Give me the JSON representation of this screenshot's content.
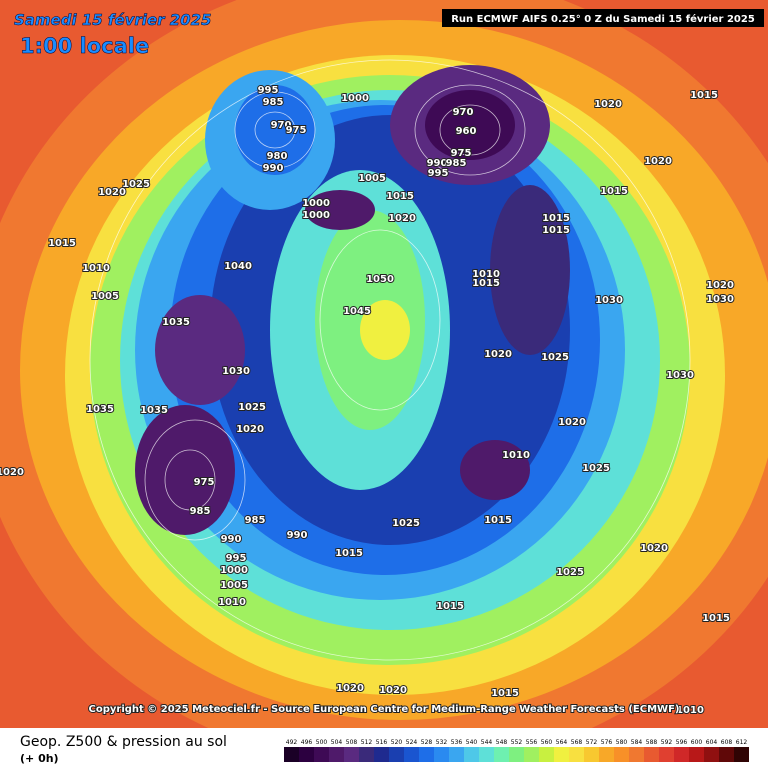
{
  "header": {
    "date": "Samedi 15 février 2025",
    "local_time": "1:00 locale",
    "run": "Run ECMWF AIFS 0.25° 0 Z du Samedi 15 février 2025"
  },
  "copyright": "Copyright © 2025 Meteociel.fr - Source European Centre for Medium-Range Weather Forecasts (ECMWF)",
  "footer": {
    "title": "Geop. Z500 & pression au sol",
    "lead": "(+ 0h)"
  },
  "isobars": [
    995,
    985,
    970,
    975,
    980,
    990,
    1000,
    970,
    960,
    975,
    990,
    985,
    995,
    1005,
    1015,
    1020,
    1000,
    1000,
    1050,
    1045,
    1040,
    1035,
    1030,
    1025,
    1020,
    1035,
    975,
    985,
    985,
    990,
    990,
    995,
    1000,
    1005,
    1010,
    1015,
    1025,
    1010,
    1015,
    1020,
    1025,
    1030,
    1020,
    1015,
    1020,
    1015,
    1015,
    1015,
    1015,
    1010,
    1020,
    1025,
    1025,
    1020,
    1015,
    1020,
    1020,
    1015,
    1015,
    1010,
    1020,
    1010,
    1005,
    1015,
    1020,
    1025,
    1035,
    1030,
    1020,
    1030
  ],
  "colorbar": {
    "levels": [
      492,
      496,
      500,
      504,
      508,
      512,
      516,
      520,
      524,
      528,
      532,
      536,
      540,
      544,
      548,
      552,
      556,
      560,
      564,
      568,
      572,
      576,
      580,
      584,
      588,
      592,
      596,
      600,
      604,
      608,
      612
    ],
    "colors": [
      "#1a0026",
      "#2c0040",
      "#3e0a55",
      "#4f1a6a",
      "#5a2a80",
      "#3a2a7a",
      "#1f2a8f",
      "#1a3fb0",
      "#1a55d0",
      "#1e6ee8",
      "#2a8af0",
      "#3aa6f0",
      "#4ec8e8",
      "#5ee0d8",
      "#6ef0b0",
      "#7ef080",
      "#a0f060",
      "#c8f040",
      "#f0f040",
      "#f8e040",
      "#f8c830",
      "#f8a828",
      "#f89028",
      "#f07830",
      "#e85a30",
      "#e04030",
      "#d02828",
      "#b81818",
      "#901010",
      "#600808",
      "#300404"
    ]
  }
}
